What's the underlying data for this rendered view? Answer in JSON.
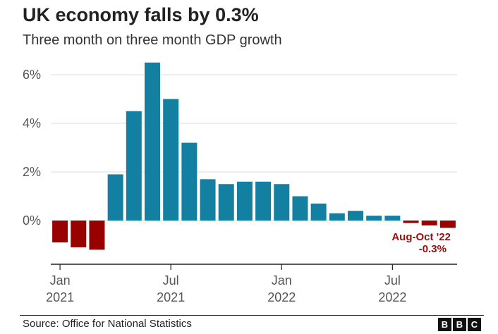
{
  "title": "UK economy falls by 0.3%",
  "subtitle": "Three month on three month GDP growth",
  "source": "Source: Office for National Statistics",
  "logo": [
    "B",
    "B",
    "C"
  ],
  "colors": {
    "positive": "#1380a1",
    "negative": "#990000",
    "axis": "#222222",
    "grid": "#dddddd"
  },
  "chart_data": {
    "type": "bar",
    "title": "UK economy falls by 0.3%",
    "subtitle": "Three month on three month GDP growth",
    "ylim": [
      -2,
      7
    ],
    "yticks": [
      {
        "value": 0,
        "label": "0%"
      },
      {
        "value": 2,
        "label": "2%"
      },
      {
        "value": 4,
        "label": "4%"
      },
      {
        "value": 6,
        "label": "6%"
      }
    ],
    "xticks": [
      {
        "index": 0,
        "label1": "Jan",
        "label2": "2021"
      },
      {
        "index": 6,
        "label1": "Jul",
        "label2": "2021"
      },
      {
        "index": 12,
        "label1": "Jan",
        "label2": "2022"
      },
      {
        "index": 18,
        "label1": "Jul",
        "label2": "2022"
      }
    ],
    "values": [
      -0.9,
      -1.1,
      -1.2,
      1.9,
      4.5,
      6.5,
      5.0,
      3.2,
      1.7,
      1.5,
      1.6,
      1.6,
      1.5,
      1.0,
      0.7,
      0.3,
      0.4,
      0.2,
      0.2,
      -0.1,
      -0.2,
      -0.3
    ],
    "grid": true,
    "annotation": {
      "line1": "Aug-Oct '22",
      "line2": "-0.3%"
    }
  }
}
